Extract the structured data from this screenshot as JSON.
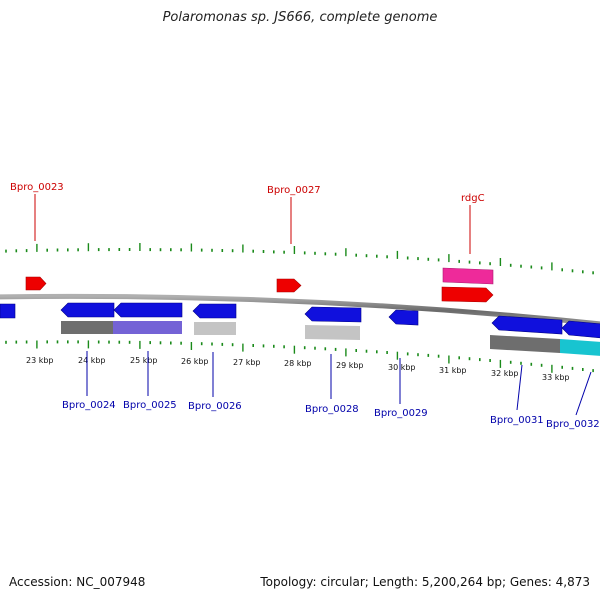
{
  "title": "Polaromonas sp. JS666, complete genome",
  "footer": {
    "accession": "Accession: NC_007948",
    "summary": "Topology: circular; Length: 5,200,264 bp; Genes: 4,873"
  },
  "colors": {
    "forward_label": "#cc0000",
    "reverse_label": "#0000aa",
    "tick": "#1a8a1a",
    "backbone": "#808080",
    "gene_blue": "#1010dd",
    "gene_red": "#ee0000",
    "gene_pink": "#ee2a9a",
    "feature_dark_gray": "#6e6e6e",
    "feature_purple": "#7463d6",
    "feature_light_gray": "#c4c4c4",
    "feature_cyan": "#18c4d0"
  },
  "scale": {
    "unit": "kbp",
    "labels": [
      "23 kbp",
      "24 kbp",
      "25 kbp",
      "26 kbp",
      "27 kbp",
      "28 kbp",
      "29 kbp",
      "30 kbp",
      "31 kbp",
      "32 kbp",
      "33 kbp"
    ]
  },
  "forward_genes": [
    {
      "label": "",
      "color": "gene_red"
    },
    {
      "label": "Bpro_0023",
      "color": "gene_red"
    },
    {
      "label": "Bpro_0027",
      "color": "gene_red"
    },
    {
      "label": "rdgC",
      "color": "gene_pink"
    },
    {
      "label": "",
      "color": "gene_red"
    }
  ],
  "reverse_genes": [
    {
      "label": "",
      "color": "gene_blue"
    },
    {
      "label": "Bpro_0024",
      "color": "gene_blue"
    },
    {
      "label": "Bpro_0025",
      "color": "gene_blue"
    },
    {
      "label": "Bpro_0026",
      "color": "gene_blue"
    },
    {
      "label": "Bpro_0028",
      "color": "gene_blue"
    },
    {
      "label": "Bpro_0029",
      "color": "gene_blue"
    },
    {
      "label": "Bpro_0031",
      "color": "gene_blue"
    },
    {
      "label": "Bpro_0032",
      "color": "gene_blue"
    }
  ],
  "features": [
    {
      "color": "feature_dark_gray"
    },
    {
      "color": "feature_purple"
    },
    {
      "color": "feature_light_gray"
    },
    {
      "color": "feature_light_gray"
    },
    {
      "color": "feature_dark_gray"
    },
    {
      "color": "feature_cyan"
    }
  ]
}
